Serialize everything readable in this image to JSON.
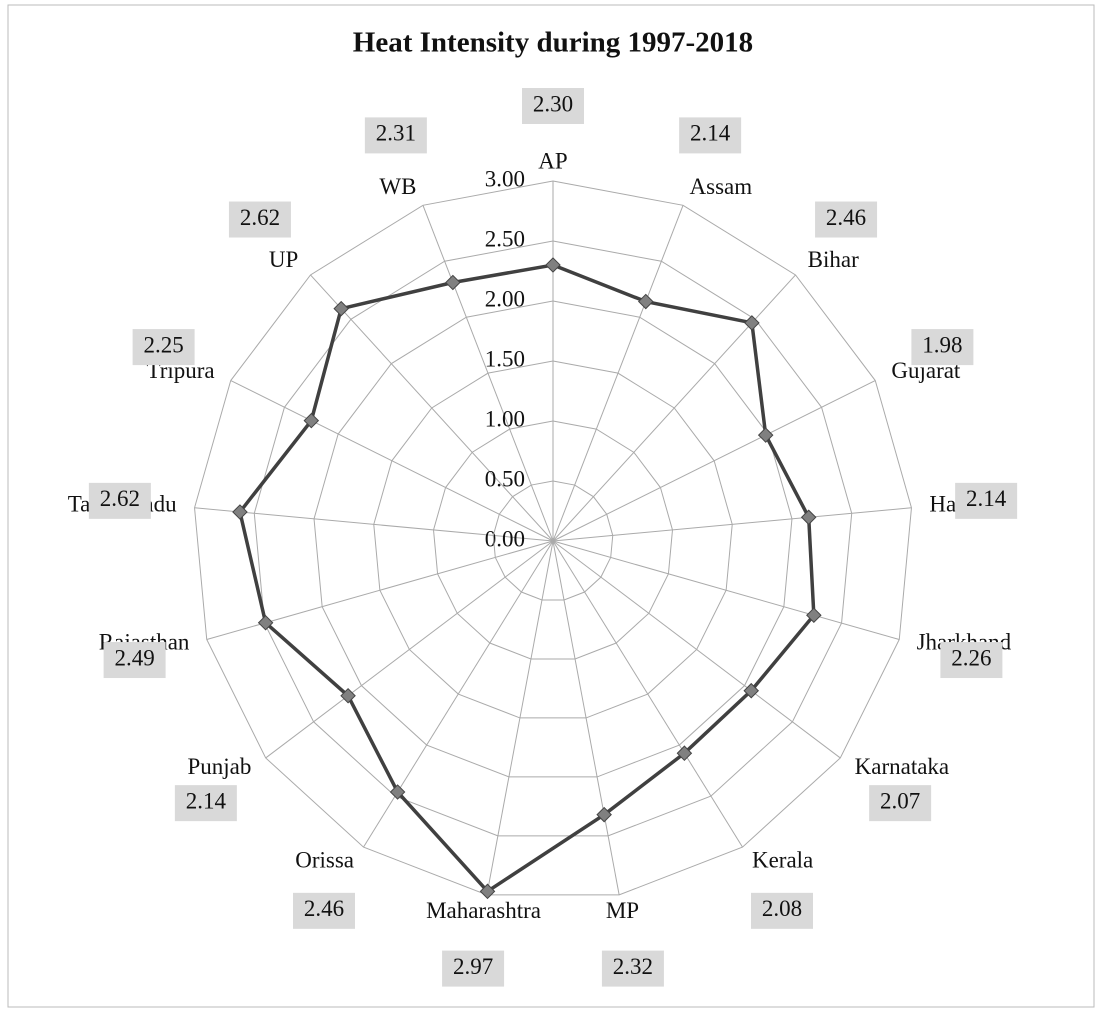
{
  "chart_data": {
    "type": "radar",
    "title": "Heat Intensity during 1997-2018",
    "categories": [
      "AP",
      "Assam",
      "Bihar",
      "Gujarat",
      "Haryana",
      "Jharkhand",
      "Karnataka",
      "Kerala",
      "MP",
      "Maharashtra",
      "Orissa",
      "Punjab",
      "Rajasthan",
      "Tamil Nadu",
      "Tripura",
      "UP",
      "WB"
    ],
    "values": [
      2.3,
      2.14,
      2.46,
      1.98,
      2.14,
      2.26,
      2.07,
      2.08,
      2.32,
      2.97,
      2.46,
      2.14,
      2.49,
      2.62,
      2.25,
      2.62,
      2.31
    ],
    "value_labels": [
      "2.30",
      "2.14",
      "2.46",
      "1.98",
      "2.14",
      "2.26",
      "2.07",
      "2.08",
      "2.32",
      "2.97",
      "2.46",
      "2.14",
      "2.49",
      "2.62",
      "2.25",
      "2.62",
      "2.31"
    ],
    "color": "#404040",
    "ylim": [
      0,
      3
    ],
    "yticks": [
      {
        "value": 0,
        "label": "0.00"
      },
      {
        "value": 0.5,
        "label": "0.50"
      },
      {
        "value": 1,
        "label": "1.00"
      },
      {
        "value": 1.5,
        "label": "1.50"
      },
      {
        "value": 2,
        "label": "2.00"
      },
      {
        "value": 2.5,
        "label": "2.50"
      },
      {
        "value": 3,
        "label": "3.00"
      }
    ],
    "grid": true
  }
}
